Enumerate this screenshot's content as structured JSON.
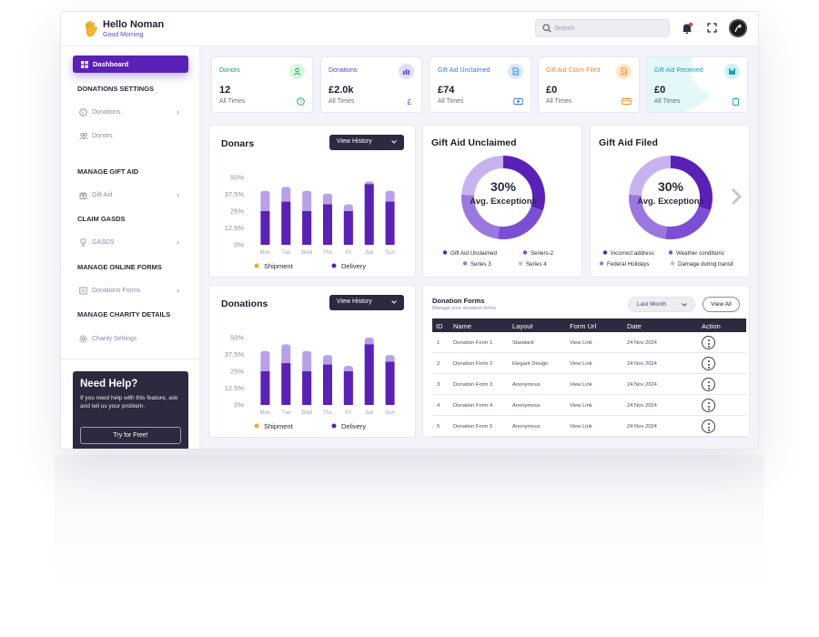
{
  "header": {
    "greeting": "Hello Noman",
    "subtitle": "Good Morning",
    "search_placeholder": "Search"
  },
  "sidebar": {
    "active": "Dashboard",
    "sections": [
      {
        "heading": "DONATIONS SETTINGS",
        "items": [
          {
            "label": "Donations",
            "chevron": true
          },
          {
            "label": "Donors",
            "chevron": false
          }
        ]
      },
      {
        "heading": "MANAGE GIFT AID",
        "items": [
          {
            "label": "Gift Aid",
            "chevron": true
          }
        ]
      },
      {
        "heading": "CLAIM GASDS",
        "items": [
          {
            "label": "GASDS",
            "chevron": true
          }
        ]
      },
      {
        "heading": "MANAGE ONLINE FORMS",
        "items": [
          {
            "label": "Donations Forms",
            "chevron": true
          }
        ]
      },
      {
        "heading": "MANAGE CHARITY DETAILS",
        "items": [
          {
            "label": "Charity Settings",
            "chevron": false
          }
        ]
      }
    ],
    "help": {
      "title": "Need Help?",
      "text": "If you need help with this feature, ask and tell us your problem.",
      "button": "Try for Free!"
    }
  },
  "stats": [
    {
      "label": "Donors",
      "value": "12",
      "sub": "All Times",
      "color": "#17a34a"
    },
    {
      "label": "Donations",
      "value": "£2.0k",
      "sub": "All Times",
      "color": "#5b3fd1"
    },
    {
      "label": "Gift Aid Unclaimed",
      "value": "£74",
      "sub": "All Times",
      "color": "#2f7de1"
    },
    {
      "label": "Gift Aid Claim Filed",
      "value": "£0",
      "sub": "All Times",
      "color": "#f08c1a"
    },
    {
      "label": "Gift Aid Received",
      "value": "£0",
      "sub": "All Times",
      "color": "#14a3b8"
    }
  ],
  "view_history": "View History",
  "chart_data": [
    {
      "type": "bar",
      "title": "Donars",
      "categories": [
        "Mon",
        "Tue",
        "Wed",
        "Thu",
        "Fri",
        "Sat",
        "Sun"
      ],
      "series": [
        {
          "name": "Shipment",
          "values": [
            40,
            43,
            40,
            38,
            30,
            47,
            40
          ]
        },
        {
          "name": "Delivery",
          "values": [
            25,
            32,
            25,
            30,
            25,
            45,
            32
          ]
        }
      ],
      "yticks": [
        "50%",
        "37.5%",
        "25%",
        "12.5%",
        "0%"
      ],
      "ylim": [
        0,
        50
      ],
      "legend": [
        "Shipment",
        "Delivery"
      ]
    },
    {
      "type": "bar",
      "title": "Donations",
      "categories": [
        "Mon",
        "Tue",
        "Wed",
        "Thu",
        "Fri",
        "Sat",
        "Sun"
      ],
      "series": [
        {
          "name": "Shipment",
          "values": [
            40,
            45,
            40,
            37,
            29,
            50,
            37
          ]
        },
        {
          "name": "Delivery",
          "values": [
            25,
            31,
            25,
            30,
            25,
            45,
            32
          ]
        }
      ],
      "yticks": [
        "50%",
        "37.5%",
        "25%",
        "12.5%",
        "0%"
      ],
      "ylim": [
        0,
        50
      ],
      "legend": [
        "Shipment",
        "Delivery"
      ]
    },
    {
      "type": "pie",
      "title": "Gift Aid Unclaimed",
      "center_value": "30%",
      "center_label": "Avg. Exceptions",
      "legend": [
        "Gift Aid Unclaimed",
        "Seriers-2",
        "Series 3",
        "Series 4"
      ],
      "values": [
        30,
        22,
        24,
        24
      ]
    },
    {
      "type": "pie",
      "title": "Gift Aid Filed",
      "center_value": "30%",
      "center_label": "Avg. Exceptions",
      "legend": [
        "Incorrect address",
        "Weather conditions",
        "Federal Holidays",
        "Damage during transit"
      ],
      "values": [
        30,
        22,
        24,
        24
      ]
    }
  ],
  "table": {
    "title": "Donation Forms",
    "subtitle": "Manage your donation forms",
    "filter": "Last Month",
    "view_all": "View All",
    "columns": [
      "ID",
      "Name",
      "Layout",
      "Form Url",
      "Date",
      "Action"
    ],
    "rows": [
      [
        "1",
        "Donation Form 1",
        "Standard",
        "View Link",
        "24 Nov 2024"
      ],
      [
        "2",
        "Donation Form 2",
        "Elegant Design",
        "View Link",
        "24 Nov 2024"
      ],
      [
        "3",
        "Donation Form 3",
        "Anonymous",
        "View Link",
        "24 Nov 2024"
      ],
      [
        "4",
        "Donation Form 4",
        "Anonymous",
        "View Link",
        "24 Nov 2024"
      ],
      [
        "5",
        "Donation Form 5",
        "Anonymous",
        "View Link",
        "24 Nov 2024"
      ]
    ]
  },
  "colors": {
    "primary": "#5a21b6",
    "light": "#b9a0ea",
    "dark": "#2b2a3f",
    "shipment": "#f0a63a"
  }
}
